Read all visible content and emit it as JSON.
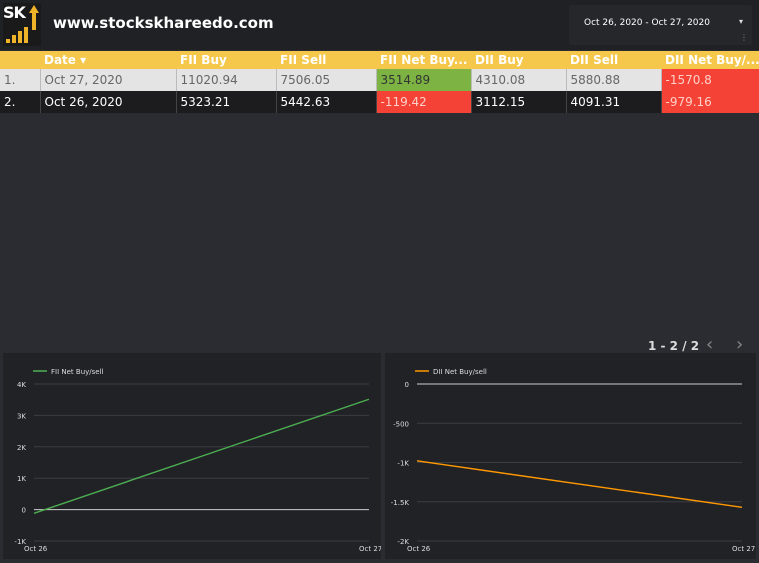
{
  "header": {
    "logo_text": "SK",
    "site_url": "www.stockskhareedo.com",
    "date_range": "Oct 26, 2020 - Oct 27, 2020"
  },
  "table": {
    "columns": [
      "",
      "Date ▾",
      "FII Buy",
      "FII Sell",
      "FII Net Buy...",
      "DII Buy",
      "DII Sell",
      "DII Net Buy/..."
    ],
    "rows": [
      {
        "idx": "1.",
        "date": "Oct 27, 2020",
        "fii_buy": "11020.94",
        "fii_sell": "7506.05",
        "fii_net": "3514.89",
        "dii_buy": "4310.08",
        "dii_sell": "5880.88",
        "dii_net": "-1570.8"
      },
      {
        "idx": "2.",
        "date": "Oct 26, 2020",
        "fii_buy": "5323.21",
        "fii_sell": "5442.63",
        "fii_net": "-119.42",
        "dii_buy": "3112.15",
        "dii_sell": "4091.31",
        "dii_net": "-979.16"
      }
    ]
  },
  "pagination": {
    "label": "1 - 2 / 2"
  },
  "colors": {
    "fii_line": "#4caf50",
    "dii_line": "#ff9800",
    "positive": "#7cb342",
    "negative": "#f44336",
    "header_yellow": "#f5c84c"
  },
  "chart_data": [
    {
      "type": "line",
      "legend": "FII Net Buy/sell",
      "x": [
        "Oct 26",
        "Oct 27"
      ],
      "series": [
        {
          "name": "FII Net Buy/sell",
          "values": [
            -119.42,
            3514.89
          ]
        }
      ],
      "y_ticks": [
        "4K",
        "3K",
        "2K",
        "1K",
        "0",
        "-1K"
      ],
      "ylim": [
        -1000,
        4000
      ]
    },
    {
      "type": "line",
      "legend": "DII Net Buy/sell",
      "x": [
        "Oct 26",
        "Oct 27"
      ],
      "series": [
        {
          "name": "DII Net Buy/sell",
          "values": [
            -979.16,
            -1570.8
          ]
        }
      ],
      "y_ticks": [
        "0",
        "-500",
        "-1K",
        "-1.5K",
        "-2K"
      ],
      "ylim": [
        -2000,
        0
      ]
    }
  ]
}
